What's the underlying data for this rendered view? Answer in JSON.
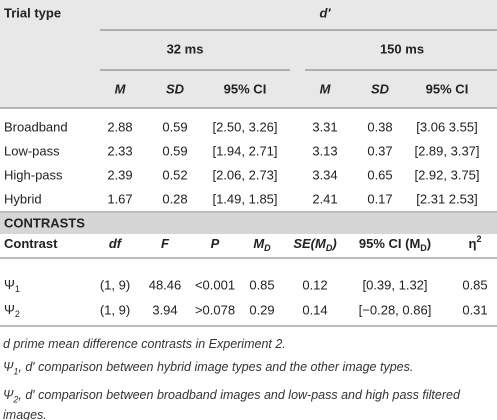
{
  "header": {
    "trial_type": "Trial type",
    "measure": "d′",
    "groups": [
      {
        "label": "32 ms",
        "columns": [
          "M",
          "SD",
          "95% CI"
        ]
      },
      {
        "label": "150 ms",
        "columns": [
          "M",
          "SD",
          "95% CI"
        ]
      }
    ]
  },
  "rows": [
    {
      "label": "Broadband",
      "values": [
        "2.88",
        "0.59",
        "[2.50, 3.26]",
        "3.31",
        "0.38",
        "[3.06 3.55]"
      ]
    },
    {
      "label": "Low-pass",
      "values": [
        "2.33",
        "0.59",
        "[1.94, 2.71]",
        "3.13",
        "0.37",
        "[2.89, 3.37]"
      ]
    },
    {
      "label": "High-pass",
      "values": [
        "2.39",
        "0.52",
        "[2.06, 2.73]",
        "3.34",
        "0.65",
        "[2.92, 3.75]"
      ]
    },
    {
      "label": "Hybrid",
      "values": [
        "1.67",
        "0.28",
        "[1.49, 1.85]",
        "2.41",
        "0.17",
        "[2.31 2.53]"
      ]
    }
  ],
  "contrasts": {
    "title": "CONTRASTS",
    "header": [
      [
        "Contrast"
      ],
      [
        "df"
      ],
      [
        "F"
      ],
      [
        "P"
      ],
      [
        "M",
        "D"
      ],
      [
        "SE(M",
        "D",
        ")"
      ],
      [
        "95% CI (M",
        "D",
        ")"
      ],
      [
        "η",
        "2"
      ]
    ],
    "rows": [
      {
        "label": [
          "Ψ",
          "1"
        ],
        "values": [
          "(1, 9)",
          "48.46",
          "<0.001",
          "0.85",
          "0.12",
          "[0.39, 1.32]",
          "0.85"
        ]
      },
      {
        "label": [
          "Ψ",
          "2"
        ],
        "values": [
          "(1, 9)",
          "3.94",
          ">0.078",
          "0.29",
          "0.14",
          "[−0.28, 0.86]",
          "0.31"
        ]
      }
    ]
  },
  "footnotes": [
    [
      "d prime mean difference contrasts in Experiment 2."
    ],
    [
      "Ψ",
      "1",
      ", d′ comparison between hybrid image types and the other image types."
    ],
    [
      "Ψ",
      "2",
      ", d′ comparison between broadband images and low-pass and high pass filtered images."
    ]
  ]
}
